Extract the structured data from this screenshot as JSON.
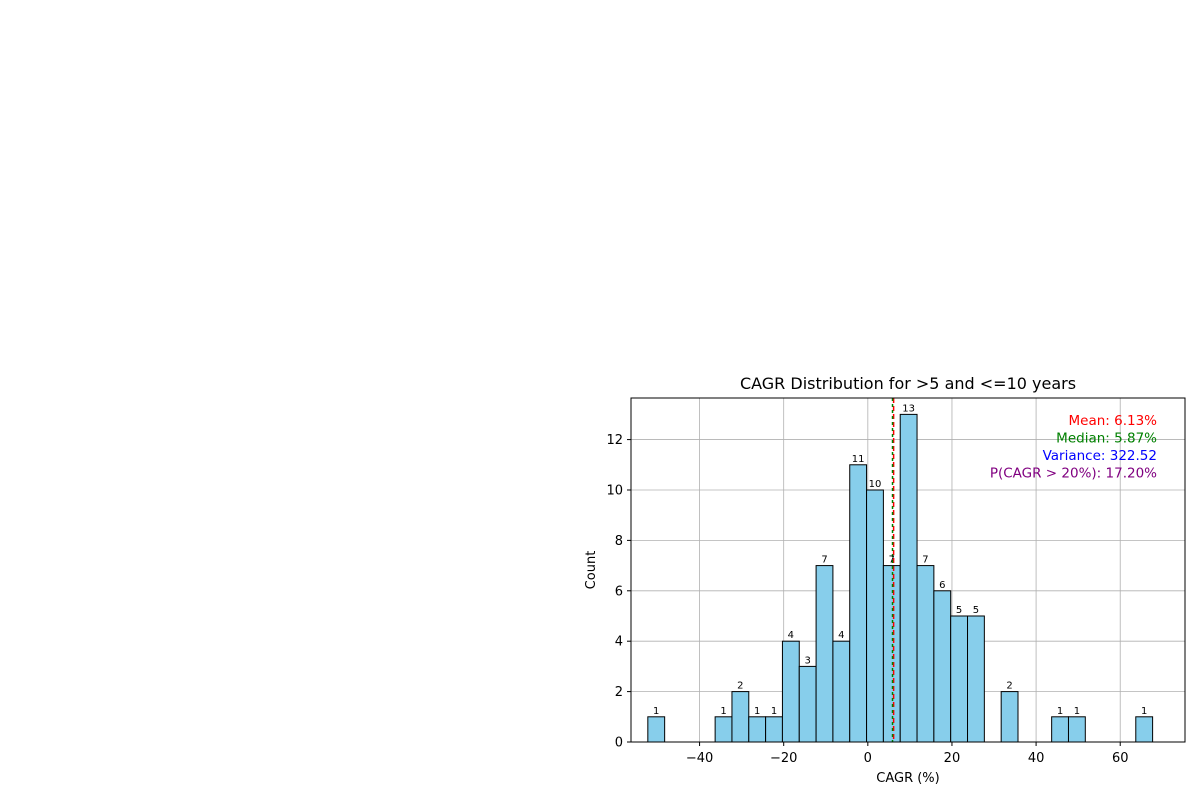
{
  "chart_data": {
    "type": "bar",
    "title": "CAGR Distribution for >5 and <=10 years",
    "xlabel": "CAGR (%)",
    "ylabel": "Count",
    "xlim": [
      -56.3,
      75.4
    ],
    "ylim": [
      0,
      13.65
    ],
    "xticks": [
      -40,
      -20,
      0,
      20,
      40,
      60
    ],
    "yticks": [
      0,
      2,
      4,
      6,
      8,
      10,
      12
    ],
    "grid": true,
    "bin_width": 4.0,
    "bins": [
      {
        "start": -52.3,
        "count": 1
      },
      {
        "start": -36.3,
        "count": 1
      },
      {
        "start": -32.3,
        "count": 2
      },
      {
        "start": -28.3,
        "count": 1
      },
      {
        "start": -24.3,
        "count": 1
      },
      {
        "start": -20.3,
        "count": 4
      },
      {
        "start": -16.3,
        "count": 3
      },
      {
        "start": -12.3,
        "count": 7
      },
      {
        "start": -8.3,
        "count": 4
      },
      {
        "start": -4.3,
        "count": 11
      },
      {
        "start": -0.3,
        "count": 10
      },
      {
        "start": 3.7,
        "count": 7
      },
      {
        "start": 7.7,
        "count": 13
      },
      {
        "start": 11.7,
        "count": 7
      },
      {
        "start": 15.7,
        "count": 6
      },
      {
        "start": 19.7,
        "count": 5
      },
      {
        "start": 23.7,
        "count": 5
      },
      {
        "start": 31.7,
        "count": 2
      },
      {
        "start": 43.7,
        "count": 1
      },
      {
        "start": 47.7,
        "count": 1
      },
      {
        "start": 63.7,
        "count": 1
      }
    ],
    "mean": 6.13,
    "median": 5.87,
    "annotations": [
      {
        "text": "Mean: 6.13%",
        "color": "#ff0000"
      },
      {
        "text": "Median: 5.87%",
        "color": "#008000"
      },
      {
        "text": "Variance: 322.52",
        "color": "#0000ff"
      },
      {
        "text": "P(CAGR > 20%): 17.20%",
        "color": "#800080"
      }
    ],
    "bar_color": "#87ceeb",
    "mean_line_color": "#ff0000",
    "median_line_color": "#008000"
  }
}
